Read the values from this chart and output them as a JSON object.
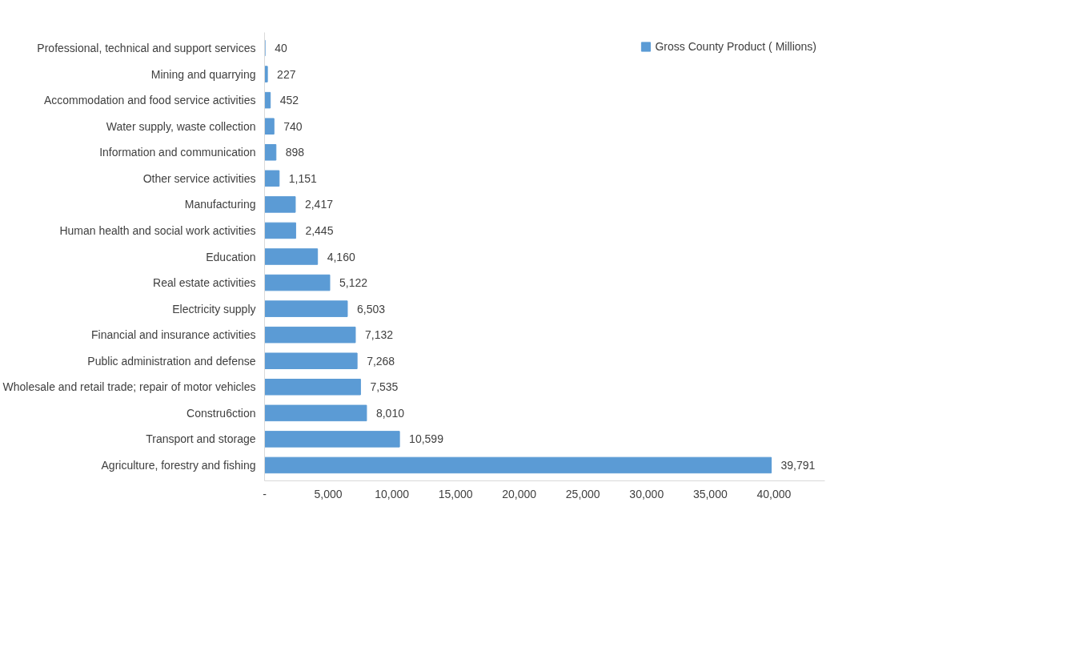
{
  "chart_data": {
    "type": "bar",
    "orientation": "horizontal",
    "categories": [
      "Professional, technical and support services",
      "Mining and quarrying",
      "Accommodation and food service activities",
      "Water supply, waste collection",
      "Information and communication",
      "Other service activities",
      "Manufacturing",
      "Human health and social work activities",
      "Education",
      "Real estate activities",
      "Electricity supply",
      "Financial and insurance activities",
      "Public administration and defense",
      "Wholesale and retail trade; repair of motor vehicles",
      "Constru6ction",
      "Transport and storage",
      "Agriculture, forestry and fishing"
    ],
    "series": [
      {
        "name": "Gross County Product ( Millions)",
        "color": "#5b9bd5",
        "values": [
          40,
          227,
          452,
          740,
          898,
          1151,
          2417,
          2445,
          4160,
          5122,
          6503,
          7132,
          7268,
          7535,
          8010,
          10599,
          39791
        ],
        "value_labels": [
          "40",
          "227",
          "452",
          "740",
          "898",
          "1,151",
          "2,417",
          "2,445",
          "4,160",
          "5,122",
          "6,503",
          "7,132",
          "7,268",
          "7,535",
          "8,010",
          "10,599",
          "39,791"
        ]
      }
    ],
    "xlim": [
      0,
      44000
    ],
    "xticks": [
      {
        "value": 0,
        "label": "-"
      },
      {
        "value": 5000,
        "label": "5,000"
      },
      {
        "value": 10000,
        "label": "10,000"
      },
      {
        "value": 15000,
        "label": "15,000"
      },
      {
        "value": 20000,
        "label": "20,000"
      },
      {
        "value": 25000,
        "label": "25,000"
      },
      {
        "value": 30000,
        "label": "30,000"
      },
      {
        "value": 35000,
        "label": "35,000"
      },
      {
        "value": 40000,
        "label": "40,000"
      }
    ],
    "grid": false,
    "legend": "top right"
  }
}
